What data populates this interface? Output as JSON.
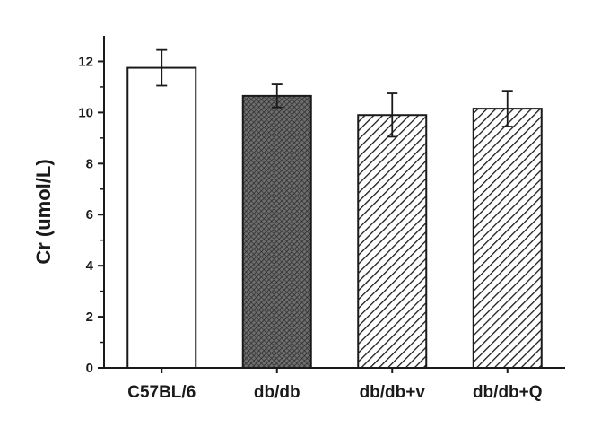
{
  "chart_data": {
    "type": "bar",
    "title": "",
    "xlabel": "",
    "ylabel": "Cr (umol/L)",
    "ylim": [
      0,
      13
    ],
    "yticks": [
      0,
      2,
      4,
      6,
      8,
      10,
      12
    ],
    "grid": false,
    "categories": [
      "C57BL/6",
      "db/db",
      "db/db+v",
      "db/db+Q"
    ],
    "values": [
      11.75,
      10.65,
      9.9,
      10.15
    ],
    "errors": [
      0.7,
      0.45,
      0.85,
      0.7
    ],
    "fills": [
      "white",
      "dense-crosshatch",
      "diagonal-hatch",
      "diagonal-hatch"
    ],
    "colors": {
      "stroke": "#1a1a1a",
      "background": "#ffffff"
    }
  }
}
